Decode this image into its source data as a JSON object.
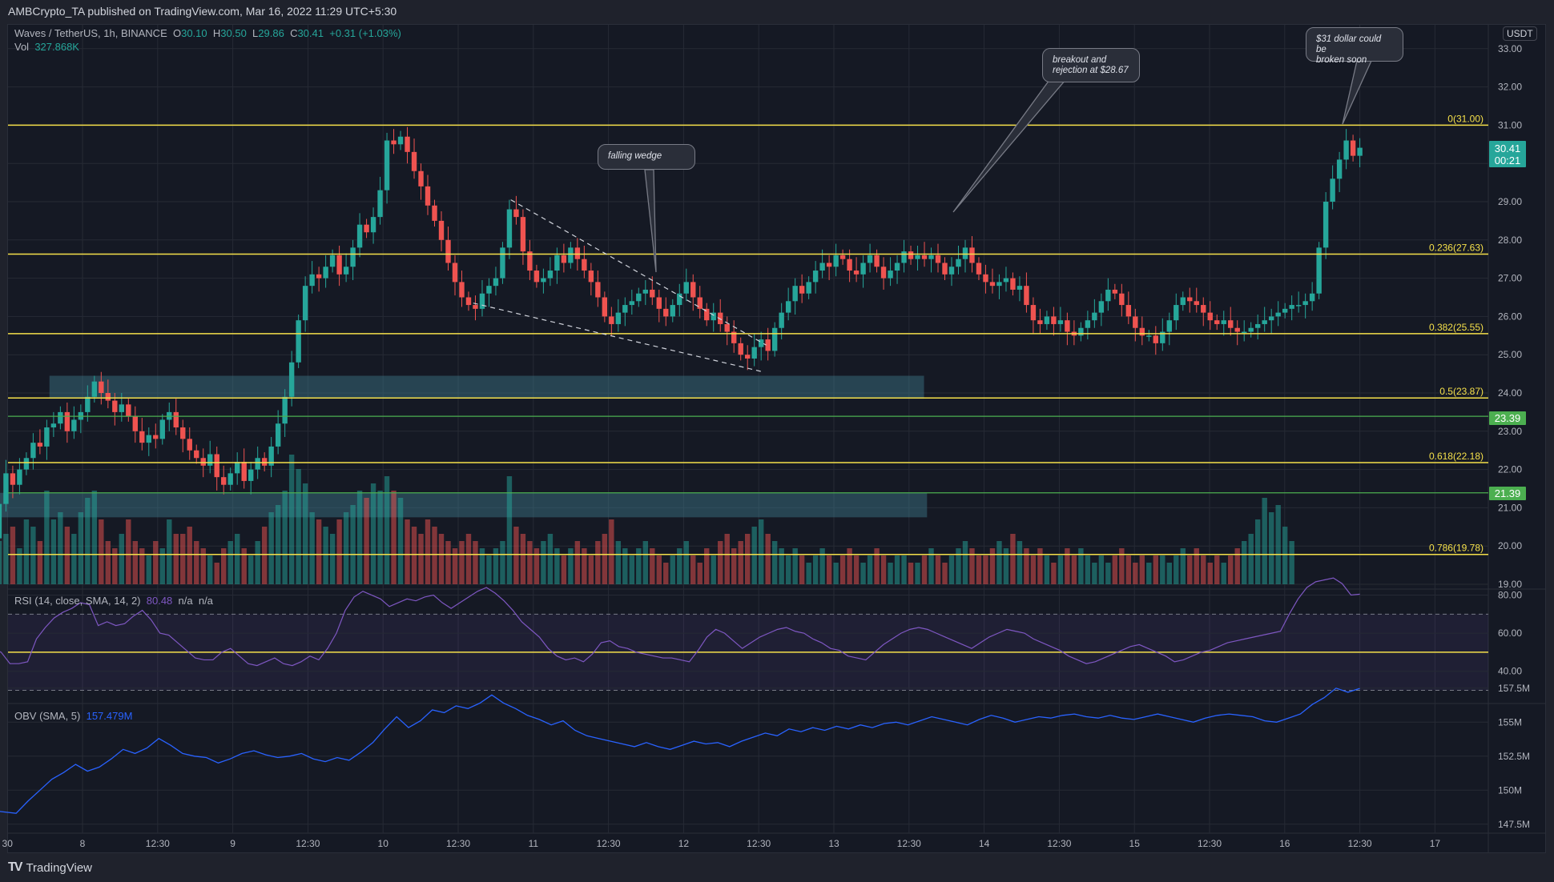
{
  "header": {
    "published": "AMBCrypto_TA published on TradingView.com, Mar 16, 2022 11:29 UTC+5:30"
  },
  "legend": {
    "symbol": "Waves / TetherUS, 1h, BINANCE",
    "o_label": "O",
    "o": "30.10",
    "h_label": "H",
    "h": "30.50",
    "l_label": "L",
    "l": "29.86",
    "c_label": "C",
    "c": "30.41",
    "change": "+0.31 (+1.03%)",
    "vol_label": "Vol",
    "vol": "327.868K",
    "rsi_label": "RSI (14, close, SMA, 14, 2)",
    "rsi_value": "80.48",
    "rsi_na1": "n/a",
    "rsi_na2": "n/a",
    "obv_label": "OBV (SMA, 5)",
    "obv_value": "157.479M"
  },
  "price_axis": {
    "unit": "USDT",
    "last_price": "30.41",
    "countdown": "00:21",
    "tag_2339": "23.39",
    "tag_2139": "21.39"
  },
  "annotations": {
    "falling_wedge": "falling wedge",
    "breakout": "breakout and rejection at $28.67",
    "breakout_line1": "breakout and",
    "breakout_line2": "rejection at $28.67",
    "target_line1": "$31 dollar could be",
    "target_line2": "broken soon"
  },
  "footer": {
    "brand": "TradingView",
    "logo_mark": "TV"
  },
  "colors": {
    "background": "#151924",
    "up": "#26a69a",
    "down": "#ef5350",
    "fib": "#f5e04a",
    "support": "#4caf50",
    "zone": "#2e5866",
    "rsi": "#7e57c2",
    "obv": "#2962ff",
    "grid": "#262a35"
  },
  "chart_data": [
    {
      "type": "candlestick",
      "title": "Waves / TetherUS, 1h, BINANCE",
      "ylabel": "USDT",
      "ylim": [
        19.0,
        33.0
      ],
      "yticks": [
        "33.00",
        "32.00",
        "31.00",
        "30.00",
        "29.00",
        "28.00",
        "27.00",
        "26.00",
        "25.00",
        "24.00",
        "23.00",
        "22.00",
        "21.00",
        "20.00",
        "19.00"
      ],
      "xticks": [
        "30",
        "8",
        "12:30",
        "9",
        "12:30",
        "10",
        "12:30",
        "11",
        "12:30",
        "12",
        "12:30",
        "13",
        "12:30",
        "14",
        "12:30",
        "15",
        "12:30",
        "16",
        "12:30",
        "17"
      ],
      "fib_levels": [
        {
          "label": "0(31.00)",
          "ratio": 0,
          "price": 31.0
        },
        {
          "label": "0.236(27.63)",
          "ratio": 0.236,
          "price": 27.63
        },
        {
          "label": "0.382(25.55)",
          "ratio": 0.382,
          "price": 25.55
        },
        {
          "label": "0.5(23.87)",
          "ratio": 0.5,
          "price": 23.87
        },
        {
          "label": "0.618(22.18)",
          "ratio": 0.618,
          "price": 22.18
        },
        {
          "label": "0.786(19.78)",
          "ratio": 0.786,
          "price": 19.78
        }
      ],
      "horizontal_lines": [
        23.39,
        21.39
      ],
      "zones": [
        {
          "top": 24.45,
          "bottom": 23.85,
          "x_start_day": 7.78,
          "x_end_day": 13.6
        },
        {
          "top": 21.39,
          "bottom": 20.75,
          "x_start_day": 7.0,
          "x_end_day": 13.62
        }
      ],
      "wedge_upper": [
        [
          10.85,
          29.05
        ],
        [
          12.55,
          25.25
        ]
      ],
      "wedge_lower": [
        [
          10.6,
          26.35
        ],
        [
          12.53,
          24.55
        ]
      ],
      "closes": [
        20.2,
        21.1,
        21.9,
        21.6,
        22.0,
        22.3,
        22.7,
        22.6,
        23.1,
        23.2,
        23.5,
        23.0,
        23.3,
        23.5,
        23.9,
        24.3,
        24.0,
        23.8,
        23.5,
        23.7,
        23.4,
        23.0,
        22.7,
        22.9,
        22.8,
        23.3,
        23.5,
        23.1,
        22.8,
        22.5,
        22.3,
        22.1,
        22.4,
        21.8,
        21.6,
        21.9,
        22.2,
        21.7,
        22.0,
        22.3,
        22.1,
        22.6,
        23.2,
        23.9,
        24.8,
        25.9,
        26.8,
        27.1,
        27.0,
        27.3,
        27.6,
        27.1,
        27.3,
        27.8,
        28.4,
        28.2,
        28.6,
        29.3,
        30.6,
        30.5,
        30.7,
        30.3,
        29.8,
        29.4,
        28.9,
        28.5,
        28.0,
        27.4,
        26.9,
        26.5,
        26.3,
        26.2,
        26.6,
        26.8,
        27.0,
        27.8,
        28.8,
        28.6,
        27.7,
        27.2,
        26.9,
        27.0,
        27.2,
        27.6,
        27.4,
        27.8,
        27.5,
        27.2,
        26.9,
        26.5,
        26.0,
        25.8,
        26.1,
        26.3,
        26.4,
        26.6,
        26.7,
        26.5,
        26.2,
        26.0,
        26.3,
        26.6,
        26.9,
        26.5,
        26.2,
        25.9,
        26.1,
        25.8,
        25.6,
        25.3,
        25.0,
        24.9,
        25.2,
        25.4,
        25.1,
        25.7,
        26.1,
        26.4,
        26.8,
        26.6,
        26.9,
        27.2,
        27.4,
        27.3,
        27.6,
        27.5,
        27.2,
        27.1,
        27.4,
        27.6,
        27.3,
        27.0,
        27.2,
        27.4,
        27.7,
        27.5,
        27.6,
        27.5,
        27.6,
        27.4,
        27.1,
        27.3,
        27.5,
        27.8,
        27.4,
        27.1,
        26.9,
        26.8,
        26.9,
        27.0,
        26.7,
        26.8,
        26.3,
        25.9,
        25.8,
        26.0,
        25.8,
        25.9,
        25.6,
        25.5,
        25.7,
        25.9,
        26.1,
        26.4,
        26.7,
        26.6,
        26.3,
        26.0,
        25.7,
        25.5,
        25.5,
        25.3,
        25.6,
        25.9,
        26.3,
        26.5,
        26.4,
        26.3,
        26.1,
        25.9,
        25.8,
        25.9,
        25.7,
        25.6,
        25.6,
        25.7,
        25.8,
        25.9,
        26.0,
        26.1,
        26.2,
        26.3,
        26.3,
        26.4,
        26.6,
        27.8,
        29.0,
        29.6,
        30.1,
        30.6,
        30.2,
        30.41
      ],
      "last": {
        "open": 30.1,
        "high": 30.5,
        "low": 29.86,
        "close": 30.41,
        "volume": "327.868K"
      }
    },
    {
      "type": "line",
      "title": "RSI (14, close, SMA, 14, 2)",
      "ylim": [
        30,
        90
      ],
      "yticks": [
        "80.00",
        "60.00",
        "40.00"
      ],
      "bands": {
        "upper": 70,
        "middle": 50,
        "lower": 30
      },
      "last_value": 80.48,
      "values": [
        52,
        50,
        44,
        44,
        45,
        57,
        63,
        68,
        71,
        73,
        76,
        75,
        64,
        66,
        64,
        65,
        69,
        72,
        67,
        60,
        59,
        55,
        51,
        47,
        46,
        46,
        50,
        52,
        48,
        44,
        43,
        45,
        47,
        44,
        43,
        45,
        48,
        46,
        52,
        60,
        72,
        79,
        82,
        80,
        78,
        74,
        76,
        78,
        77,
        79,
        80,
        76,
        73,
        76,
        79,
        82,
        84,
        81,
        77,
        72,
        66,
        62,
        58,
        52,
        48,
        46,
        47,
        45,
        49,
        55,
        56,
        53,
        52,
        50,
        49,
        48,
        47,
        47,
        46,
        45,
        51,
        58,
        62,
        60,
        56,
        52,
        55,
        58,
        60,
        62,
        63,
        61,
        60,
        57,
        55,
        52,
        51,
        48,
        47,
        46,
        50,
        54,
        57,
        60,
        62,
        63,
        62,
        60,
        58,
        56,
        54,
        52,
        55,
        58,
        60,
        62,
        61,
        60,
        57,
        55,
        53,
        51,
        48,
        46,
        44,
        45,
        47,
        49,
        51,
        53,
        54,
        52,
        50,
        48,
        45,
        46,
        48,
        50,
        51,
        53,
        55,
        56,
        57,
        58,
        59,
        60,
        61,
        70,
        78,
        84,
        87,
        88,
        89,
        86,
        80,
        80.48
      ]
    },
    {
      "type": "line",
      "title": "OBV (SMA, 5)",
      "ylim": [
        147.0,
        158.0
      ],
      "yticks": [
        "157.5M",
        "155M",
        "152.5M",
        "150M",
        "147.5M"
      ],
      "last_value": "157.479M",
      "values": [
        148.5,
        148.4,
        148.3,
        149.2,
        150.0,
        150.8,
        151.3,
        151.9,
        151.4,
        151.7,
        152.3,
        153.0,
        152.7,
        153.1,
        153.8,
        153.3,
        152.7,
        152.5,
        152.4,
        152.0,
        152.3,
        152.7,
        152.9,
        152.6,
        152.4,
        152.5,
        152.7,
        152.3,
        152.1,
        152.4,
        152.2,
        152.8,
        153.5,
        154.5,
        155.4,
        154.6,
        155.1,
        155.9,
        155.7,
        156.2,
        156.0,
        156.4,
        157.0,
        156.4,
        156.0,
        155.5,
        155.2,
        154.8,
        155.1,
        154.4,
        154.0,
        153.8,
        153.6,
        153.4,
        153.2,
        153.5,
        153.2,
        153.0,
        153.3,
        153.6,
        153.4,
        153.5,
        153.2,
        153.6,
        153.9,
        154.2,
        154.0,
        154.5,
        154.3,
        154.6,
        154.4,
        154.7,
        154.5,
        154.8,
        154.6,
        154.9,
        155.0,
        154.8,
        155.1,
        155.4,
        155.2,
        155.0,
        154.8,
        155.2,
        155.5,
        155.3,
        155.0,
        155.2,
        155.4,
        155.3,
        155.5,
        155.6,
        155.4,
        155.3,
        155.5,
        155.3,
        155.2,
        155.4,
        155.6,
        155.4,
        155.2,
        155.0,
        155.3,
        155.5,
        155.6,
        155.5,
        155.4,
        155.1,
        155.0,
        155.3,
        155.6,
        156.3,
        156.8,
        157.5,
        157.2,
        157.479
      ]
    },
    {
      "type": "bar",
      "title": "Vol",
      "last_value": "327.868K",
      "values": [
        0.9,
        0.6,
        0.7,
        0.8,
        0.5,
        0.9,
        0.8,
        0.6,
        1.3,
        0.9,
        1.0,
        0.8,
        0.7,
        1.0,
        1.2,
        1.3,
        0.9,
        0.6,
        0.5,
        0.7,
        0.9,
        0.6,
        0.5,
        0.4,
        0.6,
        0.5,
        0.9,
        0.7,
        0.7,
        0.8,
        0.6,
        0.5,
        0.4,
        0.3,
        0.5,
        0.6,
        0.7,
        0.5,
        0.4,
        0.6,
        0.8,
        1.0,
        1.1,
        1.3,
        1.8,
        1.6,
        1.4,
        1.0,
        0.9,
        0.8,
        0.7,
        0.9,
        1.0,
        1.1,
        1.3,
        1.2,
        1.4,
        1.3,
        1.5,
        1.3,
        1.2,
        0.9,
        0.8,
        0.7,
        0.9,
        0.8,
        0.7,
        0.6,
        0.5,
        0.6,
        0.7,
        0.6,
        0.5,
        0.4,
        0.5,
        0.6,
        1.5,
        0.8,
        0.7,
        0.6,
        0.5,
        0.6,
        0.7,
        0.5,
        0.4,
        0.5,
        0.6,
        0.5,
        0.4,
        0.6,
        0.7,
        0.9,
        0.6,
        0.5,
        0.4,
        0.5,
        0.6,
        0.5,
        0.4,
        0.3,
        0.4,
        0.5,
        0.6,
        0.4,
        0.3,
        0.5,
        0.4,
        0.6,
        0.7,
        0.5,
        0.6,
        0.7,
        0.8,
        0.9,
        0.7,
        0.6,
        0.5,
        0.4,
        0.5,
        0.4,
        0.3,
        0.4,
        0.5,
        0.4,
        0.3,
        0.4,
        0.5,
        0.4,
        0.3,
        0.4,
        0.5,
        0.4,
        0.3,
        0.4,
        0.4,
        0.3,
        0.3,
        0.4,
        0.5,
        0.4,
        0.3,
        0.4,
        0.5,
        0.6,
        0.5,
        0.4,
        0.4,
        0.5,
        0.6,
        0.5,
        0.7,
        0.6,
        0.5,
        0.4,
        0.5,
        0.4,
        0.3,
        0.4,
        0.5,
        0.4,
        0.5,
        0.4,
        0.3,
        0.4,
        0.3,
        0.4,
        0.5,
        0.4,
        0.3,
        0.4,
        0.3,
        0.4,
        0.4,
        0.3,
        0.4,
        0.5,
        0.4,
        0.5,
        0.4,
        0.3,
        0.4,
        0.3,
        0.4,
        0.5,
        0.6,
        0.7,
        0.9,
        1.2,
        1.0,
        1.1,
        0.8,
        0.6
      ]
    }
  ]
}
